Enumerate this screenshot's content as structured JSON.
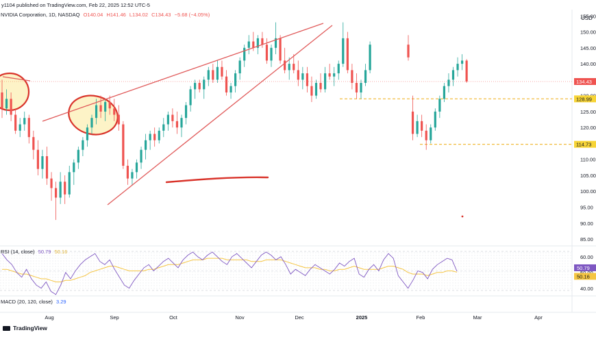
{
  "header": {
    "publisher": "y1104 published on TradingView.com, Feb 22, 2025 12:52 UTC-5",
    "symbol": "NVIDIA Corporation, 1D, NASDAQ",
    "open": "O140.04",
    "high": "H141.46",
    "low": "L134.02",
    "close": "C134.43",
    "change": "−5.68 (−4.05%)"
  },
  "currency": "USD",
  "footer": {
    "brand": "TradingView"
  },
  "colors": {
    "up": "#26a69a",
    "down": "#ef5350",
    "trendline": "#e05a5a",
    "highlight": "#f7d436",
    "rsi_line": "#7e57c2",
    "rsi_ma": "#f5c542",
    "support_line": "#f0b429"
  },
  "chart_data": [
    {
      "type": "candlestick",
      "title": "NVIDIA Corporation, 1D, NASDAQ",
      "x_ticks": [
        "Aug",
        "Sep",
        "Oct",
        "Nov",
        "Dec",
        "2025",
        "Feb",
        "Mar",
        "Apr"
      ],
      "y_ticks": [
        85,
        90,
        95,
        100,
        105,
        110,
        115,
        120,
        125,
        130,
        135,
        140,
        145,
        150,
        155
      ],
      "ylim": [
        83.5,
        157
      ],
      "price_labels": [
        {
          "value": 134.43,
          "text": "134.43",
          "kind": "last"
        },
        {
          "value": 128.99,
          "text": "128.99",
          "kind": "level"
        },
        {
          "value": 114.73,
          "text": "114.73",
          "kind": "level"
        }
      ],
      "horizontal_levels": [
        128.99,
        114.73
      ],
      "candles": [
        {
          "o": 131,
          "h": 135,
          "l": 123,
          "c": 126
        },
        {
          "o": 126,
          "h": 132,
          "l": 124,
          "c": 129
        },
        {
          "o": 129,
          "h": 131,
          "l": 122,
          "c": 124
        },
        {
          "o": 124,
          "h": 126,
          "l": 118,
          "c": 119
        },
        {
          "o": 119,
          "h": 123,
          "l": 117,
          "c": 121
        },
        {
          "o": 121,
          "h": 125,
          "l": 119,
          "c": 123
        },
        {
          "o": 123,
          "h": 124,
          "l": 115,
          "c": 117
        },
        {
          "o": 117,
          "h": 119,
          "l": 110,
          "c": 113
        },
        {
          "o": 113,
          "h": 116,
          "l": 105,
          "c": 107
        },
        {
          "o": 107,
          "h": 113,
          "l": 104,
          "c": 111
        },
        {
          "o": 111,
          "h": 114,
          "l": 102,
          "c": 104
        },
        {
          "o": 104,
          "h": 106,
          "l": 97,
          "c": 101
        },
        {
          "o": 101,
          "h": 103,
          "l": 91,
          "c": 98
        },
        {
          "o": 98,
          "h": 106,
          "l": 96,
          "c": 103
        },
        {
          "o": 103,
          "h": 105,
          "l": 96,
          "c": 99
        },
        {
          "o": 99,
          "h": 108,
          "l": 98,
          "c": 106
        },
        {
          "o": 106,
          "h": 110,
          "l": 102,
          "c": 109
        },
        {
          "o": 109,
          "h": 114,
          "l": 107,
          "c": 113
        },
        {
          "o": 113,
          "h": 117,
          "l": 111,
          "c": 116
        },
        {
          "o": 116,
          "h": 121,
          "l": 114,
          "c": 120
        },
        {
          "o": 120,
          "h": 124,
          "l": 118,
          "c": 123
        },
        {
          "o": 123,
          "h": 129,
          "l": 121,
          "c": 127
        },
        {
          "o": 127,
          "h": 130,
          "l": 123,
          "c": 125
        },
        {
          "o": 125,
          "h": 129,
          "l": 122,
          "c": 128
        },
        {
          "o": 128,
          "h": 130,
          "l": 124,
          "c": 126
        },
        {
          "o": 126,
          "h": 129,
          "l": 122,
          "c": 124
        },
        {
          "o": 124,
          "h": 127,
          "l": 119,
          "c": 121
        },
        {
          "o": 121,
          "h": 122,
          "l": 107,
          "c": 108
        },
        {
          "o": 108,
          "h": 110,
          "l": 102,
          "c": 104
        },
        {
          "o": 104,
          "h": 107,
          "l": 102,
          "c": 106
        },
        {
          "o": 106,
          "h": 110,
          "l": 104,
          "c": 109
        },
        {
          "o": 109,
          "h": 114,
          "l": 107,
          "c": 113
        },
        {
          "o": 113,
          "h": 118,
          "l": 110,
          "c": 116
        },
        {
          "o": 116,
          "h": 119,
          "l": 113,
          "c": 118
        },
        {
          "o": 118,
          "h": 120,
          "l": 114,
          "c": 116
        },
        {
          "o": 116,
          "h": 120,
          "l": 115,
          "c": 119
        },
        {
          "o": 119,
          "h": 123,
          "l": 117,
          "c": 121
        },
        {
          "o": 121,
          "h": 125,
          "l": 119,
          "c": 124
        },
        {
          "o": 124,
          "h": 126,
          "l": 120,
          "c": 122
        },
        {
          "o": 122,
          "h": 125,
          "l": 118,
          "c": 120
        },
        {
          "o": 120,
          "h": 124,
          "l": 117,
          "c": 123
        },
        {
          "o": 123,
          "h": 128,
          "l": 121,
          "c": 127
        },
        {
          "o": 127,
          "h": 133,
          "l": 125,
          "c": 132
        },
        {
          "o": 132,
          "h": 135,
          "l": 129,
          "c": 134
        },
        {
          "o": 134,
          "h": 135,
          "l": 131,
          "c": 132
        },
        {
          "o": 132,
          "h": 136,
          "l": 129,
          "c": 135
        },
        {
          "o": 135,
          "h": 139,
          "l": 133,
          "c": 138
        },
        {
          "o": 138,
          "h": 140,
          "l": 134,
          "c": 135
        },
        {
          "o": 135,
          "h": 141,
          "l": 134,
          "c": 139
        },
        {
          "o": 139,
          "h": 141,
          "l": 135,
          "c": 136
        },
        {
          "o": 136,
          "h": 138,
          "l": 130,
          "c": 131
        },
        {
          "o": 131,
          "h": 134,
          "l": 129,
          "c": 133
        },
        {
          "o": 133,
          "h": 138,
          "l": 131,
          "c": 137
        },
        {
          "o": 137,
          "h": 142,
          "l": 135,
          "c": 141
        },
        {
          "o": 141,
          "h": 146,
          "l": 139,
          "c": 145
        },
        {
          "o": 145,
          "h": 149,
          "l": 143,
          "c": 147
        },
        {
          "o": 147,
          "h": 150,
          "l": 144,
          "c": 145
        },
        {
          "o": 145,
          "h": 149,
          "l": 143,
          "c": 148
        },
        {
          "o": 148,
          "h": 150,
          "l": 145,
          "c": 146
        },
        {
          "o": 146,
          "h": 148,
          "l": 140,
          "c": 141
        },
        {
          "o": 141,
          "h": 146,
          "l": 139,
          "c": 145
        },
        {
          "o": 145,
          "h": 153,
          "l": 143,
          "c": 148
        },
        {
          "o": 148,
          "h": 149,
          "l": 140,
          "c": 141
        },
        {
          "o": 141,
          "h": 145,
          "l": 137,
          "c": 138
        },
        {
          "o": 138,
          "h": 142,
          "l": 135,
          "c": 140
        },
        {
          "o": 140,
          "h": 143,
          "l": 137,
          "c": 138
        },
        {
          "o": 138,
          "h": 141,
          "l": 133,
          "c": 135
        },
        {
          "o": 135,
          "h": 139,
          "l": 132,
          "c": 137
        },
        {
          "o": 137,
          "h": 139,
          "l": 131,
          "c": 133
        },
        {
          "o": 133,
          "h": 136,
          "l": 128,
          "c": 130
        },
        {
          "o": 130,
          "h": 135,
          "l": 129,
          "c": 134
        },
        {
          "o": 134,
          "h": 137,
          "l": 131,
          "c": 132
        },
        {
          "o": 132,
          "h": 139,
          "l": 131,
          "c": 137
        },
        {
          "o": 137,
          "h": 140,
          "l": 135,
          "c": 136
        },
        {
          "o": 136,
          "h": 139,
          "l": 133,
          "c": 137
        },
        {
          "o": 137,
          "h": 141,
          "l": 135,
          "c": 140
        },
        {
          "o": 140,
          "h": 153,
          "l": 139,
          "c": 148
        },
        {
          "o": 148,
          "h": 150,
          "l": 137,
          "c": 138
        },
        {
          "o": 138,
          "h": 140,
          "l": 132,
          "c": 134
        },
        {
          "o": 134,
          "h": 137,
          "l": 129,
          "c": 131
        },
        {
          "o": 131,
          "h": 135,
          "l": 129,
          "c": 134
        },
        {
          "o": 134,
          "h": 140,
          "l": 133,
          "c": 138
        },
        {
          "o": 138,
          "h": 147,
          "l": 137,
          "c": 146
        },
        {
          "o": 146,
          "h": 149,
          "l": 141,
          "c": 142
        },
        {
          "o": 125,
          "h": 130,
          "l": 116,
          "c": 118
        },
        {
          "o": 118,
          "h": 124,
          "l": 117,
          "c": 122
        },
        {
          "o": 122,
          "h": 124,
          "l": 117,
          "c": 119
        },
        {
          "o": 119,
          "h": 121,
          "l": 113,
          "c": 116
        },
        {
          "o": 116,
          "h": 121,
          "l": 115,
          "c": 120
        },
        {
          "o": 120,
          "h": 126,
          "l": 119,
          "c": 125
        },
        {
          "o": 125,
          "h": 130,
          "l": 123,
          "c": 129
        },
        {
          "o": 129,
          "h": 134,
          "l": 128,
          "c": 133
        },
        {
          "o": 133,
          "h": 137,
          "l": 131,
          "c": 135
        },
        {
          "o": 135,
          "h": 139,
          "l": 133,
          "c": 138
        },
        {
          "o": 138,
          "h": 142,
          "l": 136,
          "c": 140
        },
        {
          "o": 140,
          "h": 143,
          "l": 138,
          "c": 141
        },
        {
          "o": 141,
          "h": 141.46,
          "l": 134.02,
          "c": 134.43
        }
      ],
      "annotations": [
        "two highlighted ellipses",
        "rising wedge trendlines",
        "red horizontal stroke"
      ]
    },
    {
      "type": "line",
      "title": "RSI (14, close)",
      "legend": [
        "RSI (14, close)",
        "50.79",
        "50.16"
      ],
      "y_ticks": [
        40,
        50,
        60
      ],
      "ylim": [
        36,
        66
      ],
      "last_labels": [
        {
          "value": 50.79,
          "text": "50.79"
        },
        {
          "value": 50.16,
          "text": "50.16"
        }
      ],
      "series": [
        {
          "name": "RSI",
          "values": [
            62,
            58,
            55,
            50,
            47,
            52,
            46,
            42,
            40,
            44,
            38,
            36,
            42,
            50,
            46,
            51,
            55,
            58,
            60,
            62,
            57,
            55,
            58,
            52,
            47,
            42,
            40,
            45,
            49,
            53,
            55,
            51,
            54,
            57,
            59,
            56,
            53,
            58,
            61,
            63,
            60,
            58,
            61,
            63,
            60,
            57,
            55,
            60,
            62,
            59,
            56,
            53,
            57,
            61,
            63,
            61,
            58,
            60,
            55,
            49,
            52,
            50,
            48,
            52,
            55,
            53,
            51,
            49,
            52,
            56,
            54,
            57,
            59,
            49,
            47,
            52,
            55,
            51,
            58,
            62,
            59,
            48,
            44,
            40,
            45,
            51,
            50,
            46,
            52,
            55,
            57,
            59,
            58,
            50.79
          ]
        },
        {
          "name": "RSI MA",
          "values": [
            52,
            52,
            51,
            50,
            49,
            49,
            48,
            47,
            46,
            46,
            45,
            44,
            44,
            45,
            45,
            46,
            47,
            48,
            50,
            51,
            52,
            53,
            54,
            54,
            53,
            52,
            51,
            51,
            51,
            51,
            52,
            52,
            53,
            54,
            55,
            55,
            55,
            56,
            57,
            58,
            58,
            58,
            59,
            59,
            59,
            59,
            58,
            58,
            58,
            58,
            58,
            57,
            57,
            57,
            58,
            58,
            58,
            58,
            57,
            56,
            55,
            54,
            53,
            53,
            53,
            52,
            52,
            51,
            51,
            52,
            52,
            53,
            54,
            53,
            52,
            52,
            52,
            52,
            53,
            54,
            54,
            53,
            52,
            50,
            49,
            49,
            49,
            48,
            49,
            50,
            50,
            51,
            51,
            50.16
          ]
        }
      ]
    },
    {
      "type": "line",
      "title": "MACD (20, 120, close)",
      "legend": [
        "MACD (20, 120, close)",
        "3.29"
      ]
    }
  ]
}
